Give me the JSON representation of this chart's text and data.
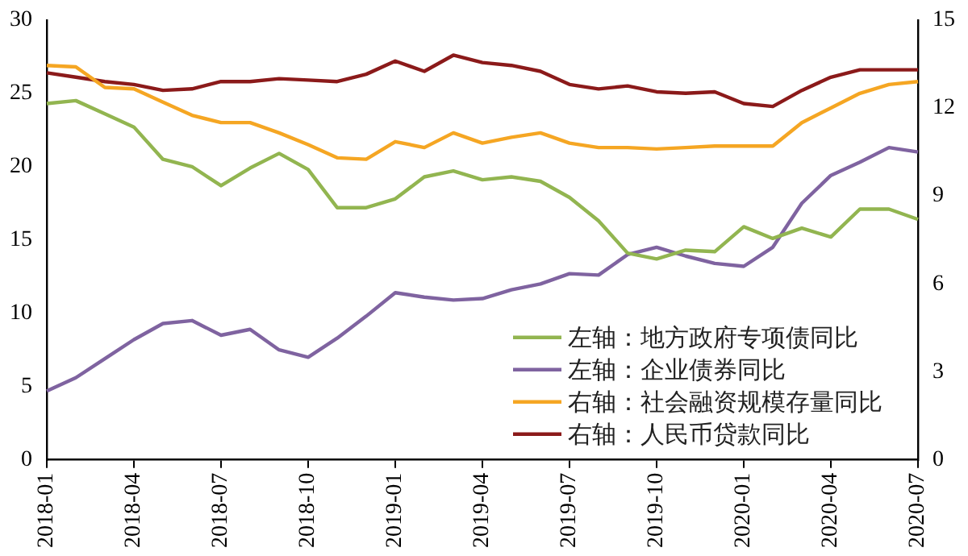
{
  "chart_data": {
    "type": "line",
    "categories": [
      "2018-01",
      null,
      null,
      "2018-04",
      null,
      null,
      "2018-07",
      null,
      null,
      "2018-10",
      null,
      null,
      "2019-01",
      null,
      null,
      "2019-04",
      null,
      null,
      "2019-07",
      null,
      null,
      "2019-10",
      null,
      null,
      "2020-01",
      null,
      null,
      "2020-04",
      null,
      null,
      "2020-07"
    ],
    "series": [
      {
        "name": "左轴：地方政府专项债同比",
        "color": "#92b550",
        "values": [
          24.3,
          24.5,
          23.6,
          22.7,
          20.5,
          20.0,
          18.7,
          19.9,
          20.9,
          19.8,
          17.2,
          17.2,
          17.8,
          19.3,
          19.7,
          19.1,
          19.3,
          19.0,
          17.9,
          16.3,
          14.1,
          13.7,
          14.3,
          14.2,
          15.9,
          15.1,
          15.8,
          15.2,
          17.1,
          17.1,
          16.4
        ]
      },
      {
        "name": "左轴：企业债券同比",
        "color": "#7f63a0",
        "values": [
          4.7,
          5.6,
          6.9,
          8.2,
          9.3,
          9.5,
          8.5,
          8.9,
          7.5,
          7.0,
          8.3,
          9.8,
          11.4,
          11.1,
          10.9,
          11.0,
          11.6,
          12.0,
          12.7,
          12.6,
          14.0,
          14.5,
          13.9,
          13.4,
          13.2,
          14.5,
          17.5,
          19.4,
          20.3,
          21.3,
          21.0
        ]
      },
      {
        "name": "右轴：社会融资规模存量同比",
        "color": "#f5a623",
        "axis": "y2",
        "values": [
          13.45,
          13.4,
          12.7,
          12.65,
          12.2,
          11.75,
          11.5,
          11.5,
          11.15,
          10.75,
          10.3,
          10.25,
          10.85,
          10.65,
          11.15,
          10.8,
          11.0,
          11.15,
          10.8,
          10.65,
          10.65,
          10.6,
          10.65,
          10.7,
          10.7,
          10.7,
          11.5,
          12.0,
          12.5,
          12.8,
          12.9
        ]
      },
      {
        "name": "右轴：人民币贷款同比",
        "color": "#8b1a1a",
        "axis": "y2",
        "values": [
          13.2,
          13.05,
          12.9,
          12.8,
          12.6,
          12.65,
          12.9,
          12.9,
          13.0,
          12.95,
          12.9,
          13.15,
          13.6,
          13.25,
          13.8,
          13.55,
          13.45,
          13.25,
          12.8,
          12.65,
          12.75,
          12.55,
          12.5,
          12.55,
          12.15,
          12.05,
          12.6,
          13.05,
          13.3,
          13.3,
          13.3
        ]
      }
    ],
    "ylim": [
      0,
      30
    ],
    "yticks": [
      0,
      5,
      10,
      15,
      20,
      25,
      30
    ],
    "y2lim": [
      0,
      15
    ],
    "y2ticks": [
      0,
      3,
      6,
      9,
      12,
      15
    ],
    "grid": false,
    "legend": "bottom right",
    "marker": "none",
    "line_style": "solid"
  }
}
